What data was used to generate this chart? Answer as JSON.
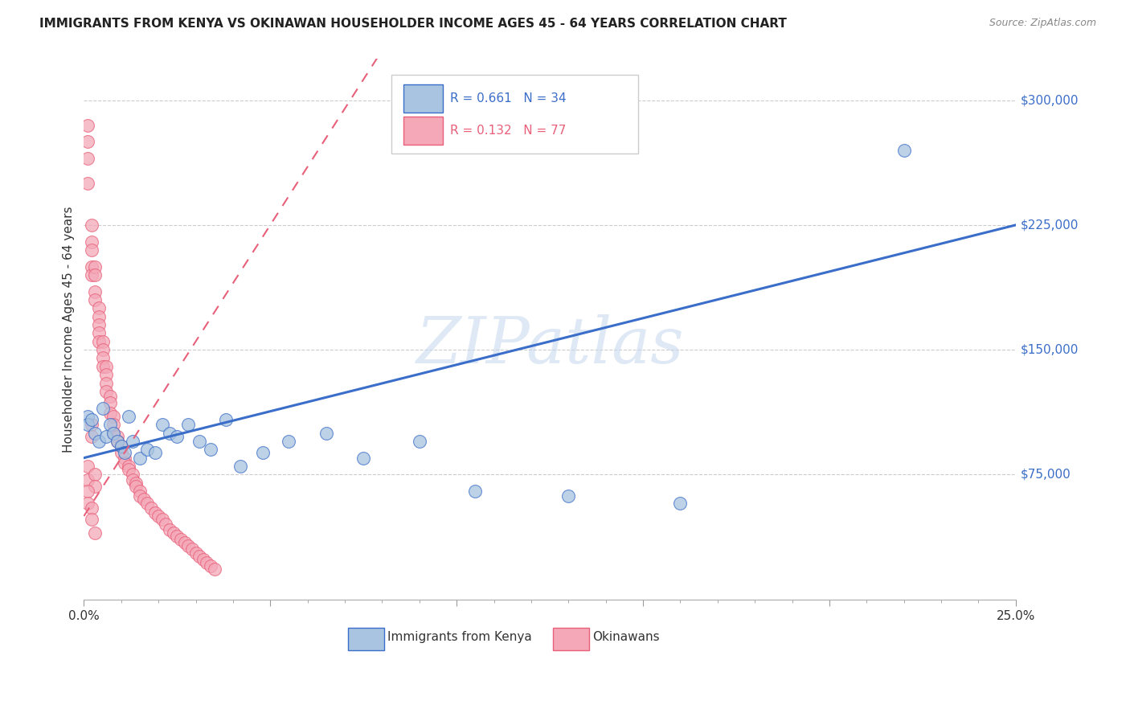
{
  "title": "IMMIGRANTS FROM KENYA VS OKINAWAN HOUSEHOLDER INCOME AGES 45 - 64 YEARS CORRELATION CHART",
  "source": "Source: ZipAtlas.com",
  "ylabel": "Householder Income Ages 45 - 64 years",
  "xlim": [
    0.0,
    0.25
  ],
  "ylim": [
    0,
    325000
  ],
  "yticks": [
    75000,
    150000,
    225000,
    300000
  ],
  "ytick_labels": [
    "$75,000",
    "$150,000",
    "$225,000",
    "$300,000"
  ],
  "xticks": [
    0.0,
    0.05,
    0.1,
    0.15,
    0.2,
    0.25
  ],
  "xtick_labels": [
    "0.0%",
    "",
    "",
    "",
    "",
    "25.0%"
  ],
  "kenya_color": "#A8C4E0",
  "okinawa_color": "#F4A8B8",
  "kenya_R": 0.661,
  "kenya_N": 34,
  "okinawa_R": 0.132,
  "okinawa_N": 77,
  "kenya_line_color": "#3B6EC8",
  "okinawa_line_color": "#E8607A",
  "watermark": "ZIPatlas",
  "background_color": "#FFFFFF",
  "kenya_x": [
    0.001,
    0.001,
    0.002,
    0.003,
    0.004,
    0.005,
    0.006,
    0.007,
    0.008,
    0.009,
    0.01,
    0.011,
    0.012,
    0.013,
    0.015,
    0.017,
    0.019,
    0.021,
    0.023,
    0.025,
    0.028,
    0.031,
    0.034,
    0.038,
    0.042,
    0.048,
    0.055,
    0.065,
    0.075,
    0.09,
    0.105,
    0.13,
    0.16,
    0.22
  ],
  "kenya_y": [
    110000,
    105000,
    108000,
    100000,
    95000,
    115000,
    98000,
    105000,
    100000,
    95000,
    92000,
    88000,
    110000,
    95000,
    85000,
    90000,
    88000,
    105000,
    100000,
    98000,
    105000,
    95000,
    90000,
    108000,
    80000,
    88000,
    95000,
    100000,
    85000,
    95000,
    65000,
    62000,
    58000,
    270000
  ],
  "okinawa_x": [
    0.001,
    0.001,
    0.001,
    0.001,
    0.002,
    0.002,
    0.002,
    0.002,
    0.002,
    0.003,
    0.003,
    0.003,
    0.003,
    0.004,
    0.004,
    0.004,
    0.004,
    0.004,
    0.005,
    0.005,
    0.005,
    0.005,
    0.006,
    0.006,
    0.006,
    0.006,
    0.007,
    0.007,
    0.007,
    0.008,
    0.008,
    0.008,
    0.009,
    0.009,
    0.01,
    0.01,
    0.011,
    0.011,
    0.012,
    0.012,
    0.013,
    0.013,
    0.014,
    0.014,
    0.015,
    0.015,
    0.016,
    0.017,
    0.018,
    0.019,
    0.02,
    0.021,
    0.022,
    0.023,
    0.024,
    0.025,
    0.026,
    0.027,
    0.028,
    0.029,
    0.03,
    0.031,
    0.032,
    0.033,
    0.034,
    0.035,
    0.002,
    0.002,
    0.001,
    0.001,
    0.003,
    0.003,
    0.001,
    0.001,
    0.002,
    0.002,
    0.003
  ],
  "okinawa_y": [
    285000,
    275000,
    265000,
    250000,
    225000,
    215000,
    210000,
    200000,
    195000,
    200000,
    195000,
    185000,
    180000,
    175000,
    170000,
    165000,
    160000,
    155000,
    155000,
    150000,
    145000,
    140000,
    140000,
    135000,
    130000,
    125000,
    122000,
    118000,
    112000,
    110000,
    105000,
    100000,
    98000,
    95000,
    92000,
    88000,
    85000,
    82000,
    80000,
    78000,
    75000,
    72000,
    70000,
    68000,
    65000,
    62000,
    60000,
    58000,
    55000,
    52000,
    50000,
    48000,
    45000,
    42000,
    40000,
    38000,
    36000,
    34000,
    32000,
    30000,
    28000,
    26000,
    24000,
    22000,
    20000,
    18000,
    105000,
    98000,
    80000,
    72000,
    75000,
    68000,
    65000,
    58000,
    55000,
    48000,
    40000
  ]
}
